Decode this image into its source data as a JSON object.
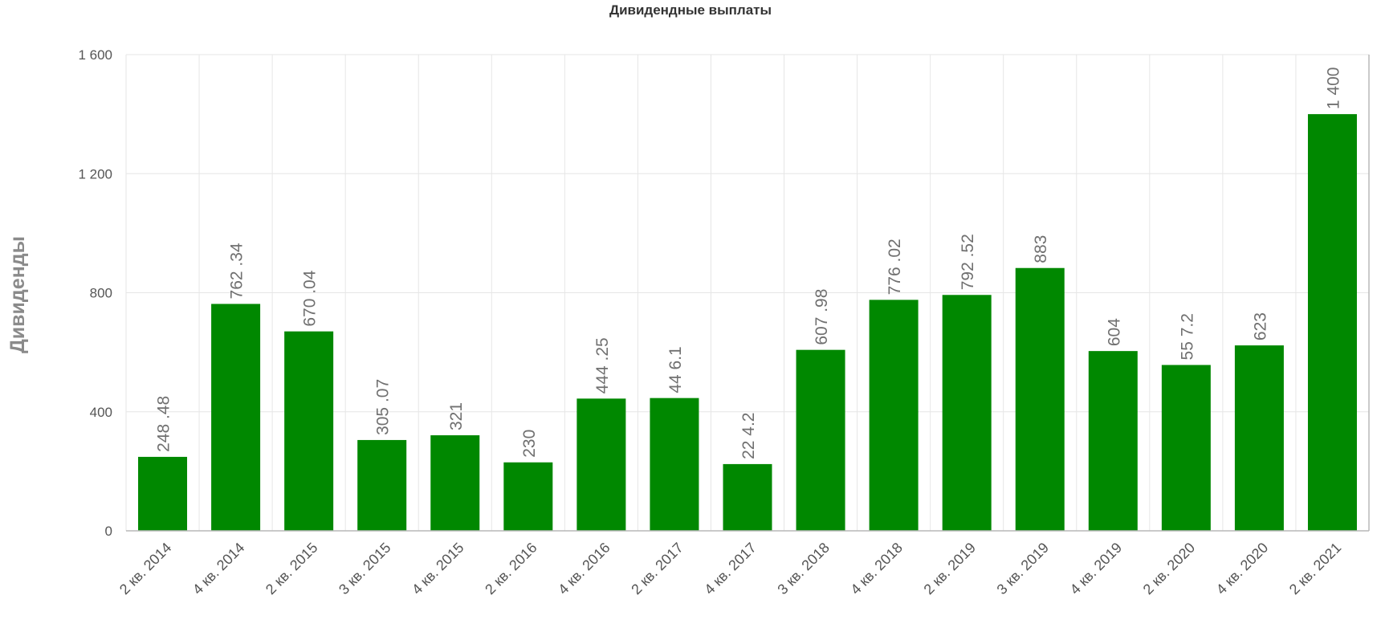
{
  "chart_data": {
    "type": "bar",
    "title": "Дивидендные выплаты",
    "xlabel": "",
    "ylabel": "Дивиденды",
    "ylim": [
      0,
      1600
    ],
    "yticks": [
      0,
      400,
      800,
      1200,
      1600
    ],
    "ytick_labels": [
      "0",
      "400",
      "800",
      "1 200",
      "1 600"
    ],
    "grid": true,
    "legend": "none",
    "bar_color": "#008800",
    "categories": [
      "2 кв. 2014",
      "4 кв. 2014",
      "2 кв. 2015",
      "3 кв. 2015",
      "4 кв. 2015",
      "2 кв. 2016",
      "4 кв. 2016",
      "2 кв. 2017",
      "4 кв. 2017",
      "3 кв. 2018",
      "4 кв. 2018",
      "2 кв. 2019",
      "3 кв. 2019",
      "4 кв. 2019",
      "2 кв. 2020",
      "4 кв. 2020",
      "2 кв. 2021"
    ],
    "values": [
      248.48,
      762.34,
      670.04,
      305.07,
      321,
      230,
      444.25,
      446.1,
      224.2,
      607.98,
      776.02,
      792.52,
      883,
      604,
      557.2,
      623,
      1400
    ],
    "data_labels": [
      "248 .48",
      "762 .34",
      "670 .04",
      "305 .07",
      "321",
      "230",
      "444 .25",
      "44 6.1",
      "22 4.2",
      "607 .98",
      "776 .02",
      "792 .52",
      "883",
      "604",
      "55 7.2",
      "623",
      "1 400"
    ]
  }
}
